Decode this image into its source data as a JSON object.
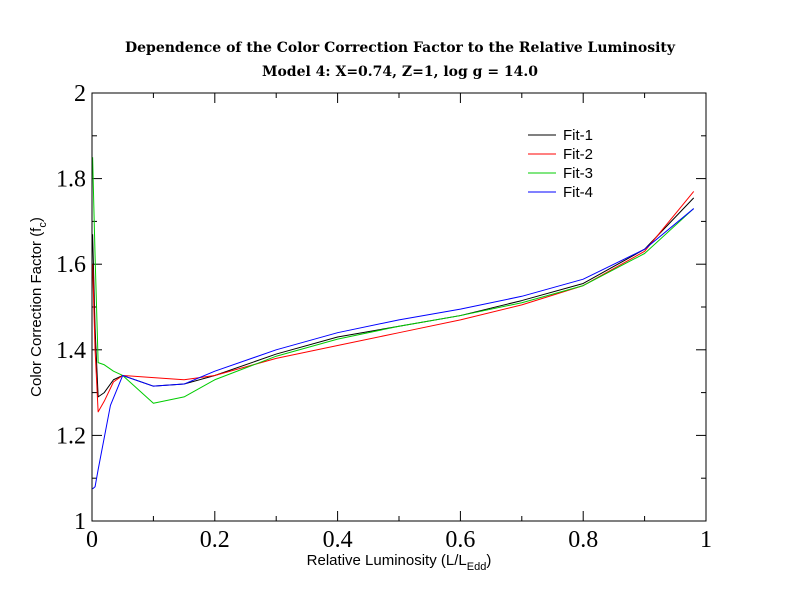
{
  "chart_data": {
    "type": "line",
    "title": "Dependence of the Color Correction Factor to the Relative Luminosity",
    "subtitle": "Model 4: X=0.74, Z=1, log g = 14.0",
    "xlabel": "Relative Luminosity (L/L",
    "xlabel_sub": "Edd",
    "xlabel_end": ")",
    "ylabel": "Color Correction Factor (f",
    "ylabel_sub": "c",
    "ylabel_end": ")",
    "xlim": [
      0,
      1
    ],
    "ylim": [
      1,
      2
    ],
    "xticks": [
      0,
      0.2,
      0.4,
      0.6,
      0.8,
      1
    ],
    "xtick_labels": [
      "0",
      "0.2",
      "0.4",
      "0.6",
      "0.8",
      "1"
    ],
    "yticks": [
      1,
      1.2,
      1.4,
      1.6,
      1.8,
      2
    ],
    "ytick_labels": [
      "1",
      "1.2",
      "1.4",
      "1.6",
      "1.8",
      "2"
    ],
    "x_minor_step": 0.1,
    "y_minor_step": 0.1,
    "grid": false,
    "legend_position": "top-right",
    "series": [
      {
        "name": "Fit-1",
        "color": "#000000",
        "points": [
          [
            0.001,
            1.67
          ],
          [
            0.005,
            1.45
          ],
          [
            0.01,
            1.29
          ],
          [
            0.02,
            1.3
          ],
          [
            0.035,
            1.33
          ],
          [
            0.05,
            1.34
          ],
          [
            0.1,
            1.315
          ],
          [
            0.15,
            1.32
          ],
          [
            0.2,
            1.34
          ],
          [
            0.3,
            1.39
          ],
          [
            0.4,
            1.43
          ],
          [
            0.5,
            1.455
          ],
          [
            0.6,
            1.48
          ],
          [
            0.7,
            1.515
          ],
          [
            0.8,
            1.555
          ],
          [
            0.9,
            1.635
          ],
          [
            0.98,
            1.755
          ]
        ]
      },
      {
        "name": "Fit-2",
        "color": "#ff0000",
        "points": [
          [
            0.001,
            1.6
          ],
          [
            0.005,
            1.4
          ],
          [
            0.01,
            1.255
          ],
          [
            0.02,
            1.28
          ],
          [
            0.035,
            1.325
          ],
          [
            0.05,
            1.34
          ],
          [
            0.1,
            1.335
          ],
          [
            0.15,
            1.33
          ],
          [
            0.2,
            1.34
          ],
          [
            0.3,
            1.38
          ],
          [
            0.4,
            1.41
          ],
          [
            0.5,
            1.44
          ],
          [
            0.6,
            1.47
          ],
          [
            0.7,
            1.505
          ],
          [
            0.8,
            1.55
          ],
          [
            0.9,
            1.63
          ],
          [
            0.98,
            1.77
          ]
        ]
      },
      {
        "name": "Fit-3",
        "color": "#00cc00",
        "points": [
          [
            0.001,
            1.85
          ],
          [
            0.005,
            1.62
          ],
          [
            0.01,
            1.37
          ],
          [
            0.02,
            1.365
          ],
          [
            0.035,
            1.35
          ],
          [
            0.05,
            1.34
          ],
          [
            0.1,
            1.275
          ],
          [
            0.15,
            1.29
          ],
          [
            0.2,
            1.33
          ],
          [
            0.3,
            1.385
          ],
          [
            0.4,
            1.425
          ],
          [
            0.5,
            1.455
          ],
          [
            0.6,
            1.48
          ],
          [
            0.7,
            1.51
          ],
          [
            0.8,
            1.55
          ],
          [
            0.9,
            1.625
          ],
          [
            0.98,
            1.73
          ]
        ]
      },
      {
        "name": "Fit-4",
        "color": "#0000ff",
        "points": [
          [
            0.001,
            1.075
          ],
          [
            0.005,
            1.08
          ],
          [
            0.01,
            1.12
          ],
          [
            0.03,
            1.27
          ],
          [
            0.05,
            1.34
          ],
          [
            0.1,
            1.315
          ],
          [
            0.15,
            1.32
          ],
          [
            0.2,
            1.35
          ],
          [
            0.3,
            1.4
          ],
          [
            0.4,
            1.44
          ],
          [
            0.5,
            1.47
          ],
          [
            0.6,
            1.495
          ],
          [
            0.7,
            1.525
          ],
          [
            0.8,
            1.565
          ],
          [
            0.9,
            1.635
          ],
          [
            0.98,
            1.73
          ]
        ]
      }
    ]
  }
}
